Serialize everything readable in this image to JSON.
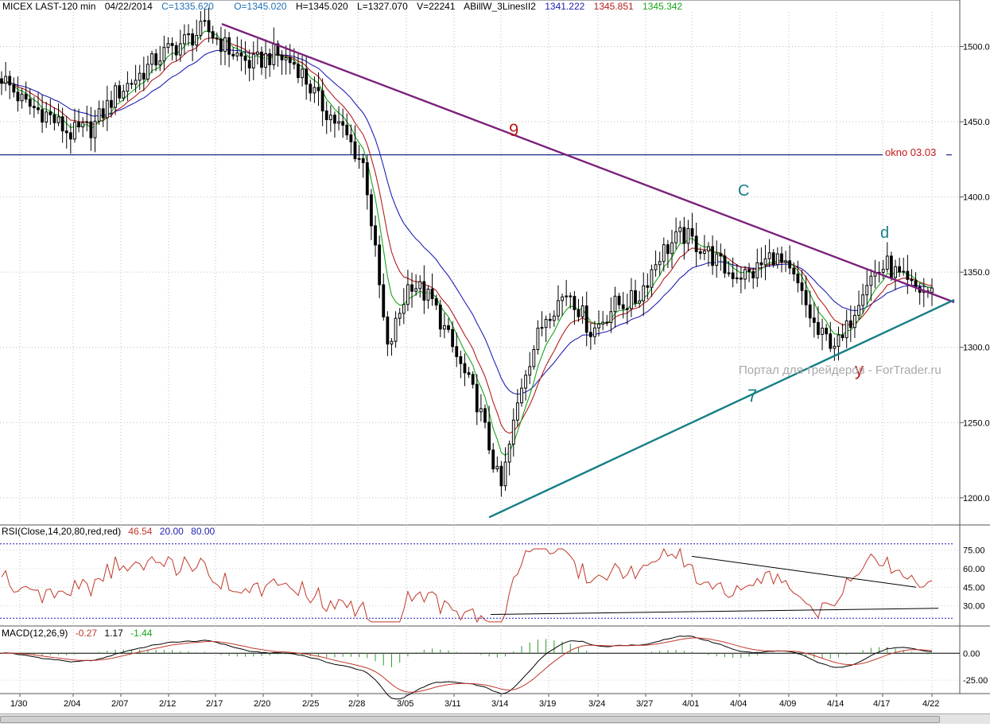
{
  "header": {
    "symbol": "MICEX LAST-120 min",
    "date": "04/22/2014",
    "close": "C=1335.620",
    "open": "O=1345.020",
    "high": "H=1345.020",
    "low": "L=1327.070",
    "volume": "V=22241",
    "indicator": "ABillW_3LinesII2",
    "line1": "1341.222",
    "line2": "1345.851",
    "line3": "1345.342"
  },
  "colors": {
    "candle": "#000000",
    "blue_ma": "#1f1fb4",
    "red_ma": "#b41e1e",
    "green_ma": "#18a518",
    "trend9": "#7a1f7a",
    "trend7": "#167f86",
    "level": "#1a2a8a",
    "rsi": "#c0392b",
    "macd_hist": "#2e9c2e",
    "dotted": "#1c1cc0",
    "watermark": "#a9a9a9"
  },
  "main_axis": {
    "ticks": [
      "1500.00",
      "1450.00",
      "1400.00",
      "1350.00",
      "1300.00",
      "1250.00",
      "1200.00"
    ],
    "ymin": 1183,
    "ymax": 1523
  },
  "annotations": {
    "wave_9": "9",
    "wave_7": "7",
    "wave_c": "C",
    "wave_d": "d",
    "wave_y": "y",
    "level_label": "okno 03.03",
    "watermark": "Портал для трейдеров - ForTrader.ru"
  },
  "rsi": {
    "label": "RSI(Close,14,20,80,red,red)",
    "v1": "46.54",
    "v2": "20.00",
    "v3": "80.00",
    "ticks": [
      "75.00",
      "60.00",
      "45.00",
      "30.00"
    ]
  },
  "macd": {
    "label": "MACD(12,26,9)",
    "v1": "-0.27",
    "v2": "1.17",
    "v3": "-1.44",
    "ticks": [
      "0.00",
      "-25.00"
    ]
  },
  "date_axis": [
    "1/30",
    "2/04",
    "2/07",
    "2/12",
    "2/17",
    "2/20",
    "2/25",
    "2/28",
    "3/05",
    "3/11",
    "3/14",
    "3/19",
    "3/24",
    "3/27",
    "4/01",
    "4/04",
    "4/09",
    "4/14",
    "4/17",
    "4/22"
  ],
  "chart_data": {
    "type": "candlestick",
    "title": "MICEX LAST-120 min",
    "ylim": [
      1183,
      1523
    ],
    "x": [
      "1/30",
      "2/04",
      "2/07",
      "2/12",
      "2/17",
      "2/20",
      "2/25",
      "2/28",
      "3/05",
      "3/11",
      "3/14",
      "3/19",
      "3/24",
      "3/27",
      "4/01",
      "4/04",
      "4/09",
      "4/14",
      "4/17",
      "4/22"
    ],
    "close_path": [
      1480,
      1462,
      1455,
      1442,
      1446,
      1468,
      1480,
      1494,
      1503,
      1512,
      1498,
      1488,
      1495,
      1488,
      1463,
      1445,
      1420,
      1297,
      1345,
      1330,
      1295,
      1262,
      1205,
      1282,
      1322,
      1338,
      1310,
      1328,
      1332,
      1362,
      1375,
      1365,
      1350,
      1348,
      1362,
      1343,
      1308,
      1302,
      1343,
      1355,
      1340,
      1336
    ],
    "close_path_note": "",
    "trendlines": [
      {
        "name": "9",
        "from": [
          "2/17",
          1515
        ],
        "to": [
          "4/22",
          1330
        ]
      },
      {
        "name": "7",
        "from": [
          "3/14",
          1187
        ],
        "to": [
          "4/22",
          1330
        ]
      }
    ],
    "levels": [
      {
        "label": "okno 03.03",
        "value": 1428
      }
    ],
    "rsi_levels": [
      20,
      80
    ],
    "macd_params": [
      12,
      26,
      9
    ]
  }
}
